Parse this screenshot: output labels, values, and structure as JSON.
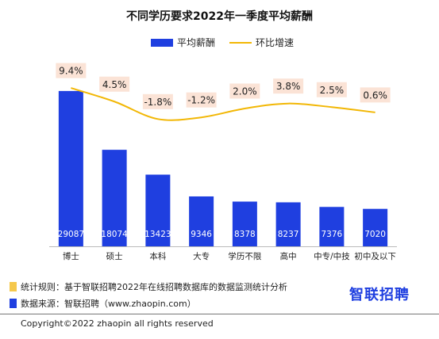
{
  "chart_data": {
    "type": "bar",
    "title": "不同学历要求2022年一季度平均薪酬",
    "categories": [
      "博士",
      "硕士",
      "本科",
      "大专",
      "学历不限",
      "高中",
      "中专/中技",
      "初中及以下"
    ],
    "series": [
      {
        "name": "平均薪酬",
        "type": "bar",
        "values": [
          29087,
          18074,
          13423,
          9346,
          8378,
          8237,
          7376,
          7020
        ]
      },
      {
        "name": "环比增速",
        "type": "line",
        "values": [
          9.4,
          4.5,
          -1.8,
          -1.2,
          2.0,
          3.8,
          2.5,
          0.6
        ],
        "labels": [
          "9.4%",
          "4.5%",
          "-1.8%",
          "-1.2%",
          "2.0%",
          "3.8%",
          "2.5%",
          "0.6%"
        ]
      }
    ],
    "ylim": [
      0,
      35000
    ],
    "y2lim": [
      -6,
      14
    ],
    "legend_position": "top-center",
    "grid": false,
    "colors": {
      "bar": "#1f3fe0",
      "line": "#f2b705",
      "label_bg": "#fbe3d6"
    }
  },
  "notes": {
    "rule_text": "统计规则：基于智联招聘2022年在线招聘数据库的数据监测统计分析",
    "source_text": "数据来源：智联招聘（www.zhaopin.com）",
    "rule_color": "#f5c84c",
    "source_color": "#1f3fe0"
  },
  "logo_text": "智联招聘",
  "copyright": "Copyright©2022 zhaopin all rights reserved"
}
